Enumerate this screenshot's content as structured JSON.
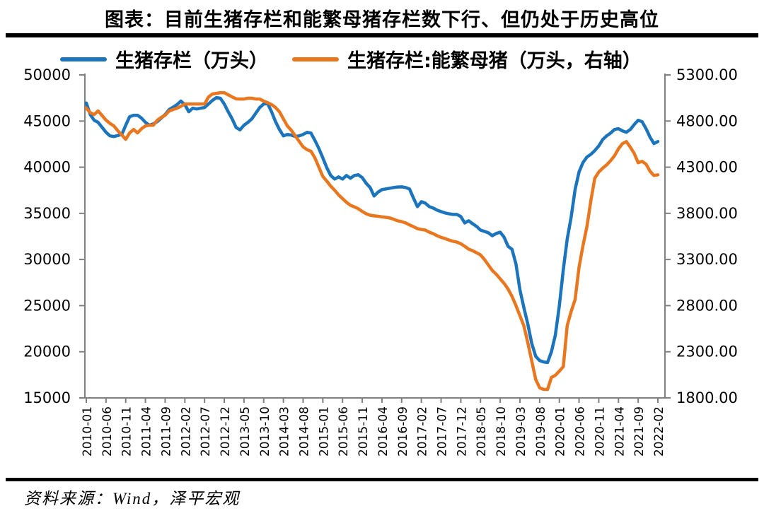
{
  "page": {
    "title": "图表：目前生猪存栏和能繁母猪存栏数下行、但仍处于历史高位",
    "source": "资料来源：Wind，泽平宏观"
  },
  "colors": {
    "pig_inventory_line": "#1B74BC",
    "sow_inventory_line": "#E8771F",
    "axis": "#808080",
    "text": "#000000",
    "background": "#FFFFFF"
  },
  "legend": {
    "items": [
      {
        "label": "生猪存栏（万头）",
        "color": "#1B74BC"
      },
      {
        "label": "生猪存栏:能繁母猪（万头，右轴）",
        "color": "#E8771F"
      }
    ]
  },
  "chart_data": {
    "type": "line",
    "title": "图表：目前生猪存栏和能繁母猪存栏数下行、但仍处于历史高位",
    "x_start": "2010-01",
    "x_end": "2022-02",
    "x_frequency": "monthly",
    "x_tick_labels": [
      "2010-01",
      "2010-06",
      "2010-11",
      "2011-04",
      "2011-09",
      "2012-02",
      "2012-07",
      "2012-12",
      "2013-05",
      "2013-10",
      "2014-03",
      "2014-08",
      "2015-01",
      "2015-06",
      "2015-11",
      "2016-04",
      "2016-09",
      "2017-02",
      "2017-07",
      "2017-12",
      "2018-05",
      "2018-10",
      "2019-03",
      "2019-08",
      "2020-01",
      "2020-06",
      "2020-11",
      "2021-04",
      "2021-09",
      "2022-02"
    ],
    "x_tick_every_n_months": 5,
    "left_axis": {
      "min": 15000,
      "max": 50000,
      "tick_step": 5000,
      "tick_labels": [
        "15000",
        "20000",
        "25000",
        "30000",
        "35000",
        "40000",
        "45000",
        "50000"
      ]
    },
    "right_axis": {
      "min": 1800,
      "max": 5300,
      "tick_step": 500,
      "tick_labels": [
        "1800.00",
        "2300.00",
        "2800.00",
        "3300.00",
        "3800.00",
        "4300.00",
        "4800.00",
        "5300.00"
      ]
    },
    "grid": false,
    "legend_position": "top",
    "series": [
      {
        "name": "生猪存栏（万头）",
        "axis": "left",
        "color": "#1B74BC",
        "values": [
          46950,
          45700,
          45090,
          44860,
          44320,
          43780,
          43400,
          43320,
          43440,
          43550,
          44550,
          45470,
          45630,
          45630,
          45320,
          44860,
          44550,
          44700,
          44940,
          45320,
          45700,
          46240,
          46500,
          46780,
          47160,
          46780,
          46010,
          46390,
          46310,
          46390,
          46470,
          46850,
          47240,
          47540,
          47470,
          46850,
          46010,
          45240,
          44300,
          44050,
          44550,
          44860,
          45240,
          45860,
          46470,
          46850,
          46900,
          46000,
          44940,
          44090,
          43400,
          43550,
          43480,
          43320,
          43400,
          43550,
          43780,
          43700,
          42900,
          42020,
          41020,
          39950,
          39100,
          38720,
          38950,
          38720,
          39100,
          38800,
          39100,
          39180,
          38870,
          38260,
          37800,
          36880,
          37300,
          37570,
          37650,
          37720,
          37800,
          37850,
          37870,
          37800,
          37640,
          36650,
          35730,
          36260,
          36110,
          35730,
          35570,
          35340,
          35190,
          35040,
          34960,
          34880,
          34880,
          34650,
          33960,
          34190,
          33880,
          33580,
          33190,
          33040,
          32890,
          32580,
          32820,
          32960,
          32400,
          31430,
          31100,
          29500,
          26700,
          24800,
          23000,
          20900,
          19500,
          19050,
          18900,
          18840,
          20000,
          21830,
          25000,
          28900,
          32200,
          34600,
          37600,
          39500,
          40500,
          41100,
          41400,
          41800,
          42300,
          43000,
          43400,
          43700,
          44090,
          44170,
          43940,
          43790,
          44090,
          44630,
          45090,
          44930,
          44170,
          43250,
          42560,
          42780
        ]
      },
      {
        "name": "生猪存栏:能繁母猪（万头，右轴）",
        "axis": "right",
        "color": "#E8771F",
        "values": [
          4940,
          4890,
          4870,
          4910,
          4860,
          4810,
          4775,
          4747,
          4694,
          4650,
          4602,
          4671,
          4709,
          4671,
          4717,
          4747,
          4755,
          4755,
          4809,
          4840,
          4863,
          4909,
          4925,
          4939,
          4960,
          4985,
          4985,
          4985,
          4985,
          4985,
          4985,
          5060,
          5093,
          5100,
          5108,
          5108,
          5085,
          5062,
          5040,
          5039,
          5039,
          5047,
          5047,
          5039,
          5039,
          5016,
          5000,
          4978,
          4947,
          4901,
          4824,
          4747,
          4700,
          4640,
          4580,
          4520,
          4490,
          4473,
          4400,
          4300,
          4200,
          4150,
          4095,
          4050,
          4000,
          3960,
          3920,
          3888,
          3870,
          3850,
          3820,
          3796,
          3780,
          3773,
          3768,
          3762,
          3757,
          3750,
          3735,
          3719,
          3710,
          3696,
          3675,
          3656,
          3634,
          3625,
          3619,
          3596,
          3580,
          3558,
          3540,
          3527,
          3510,
          3498,
          3489,
          3470,
          3443,
          3412,
          3395,
          3373,
          3350,
          3300,
          3240,
          3180,
          3140,
          3090,
          3040,
          2980,
          2900,
          2800,
          2690,
          2583,
          2400,
          2200,
          2000,
          1910,
          1893,
          1892,
          2022,
          2045,
          2090,
          2140,
          2583,
          2737,
          2867,
          3220,
          3450,
          3657,
          3940,
          4180,
          4248,
          4290,
          4325,
          4370,
          4425,
          4500,
          4555,
          4578,
          4517,
          4448,
          4348,
          4363,
          4333,
          4256,
          4210,
          4218
        ]
      }
    ]
  }
}
